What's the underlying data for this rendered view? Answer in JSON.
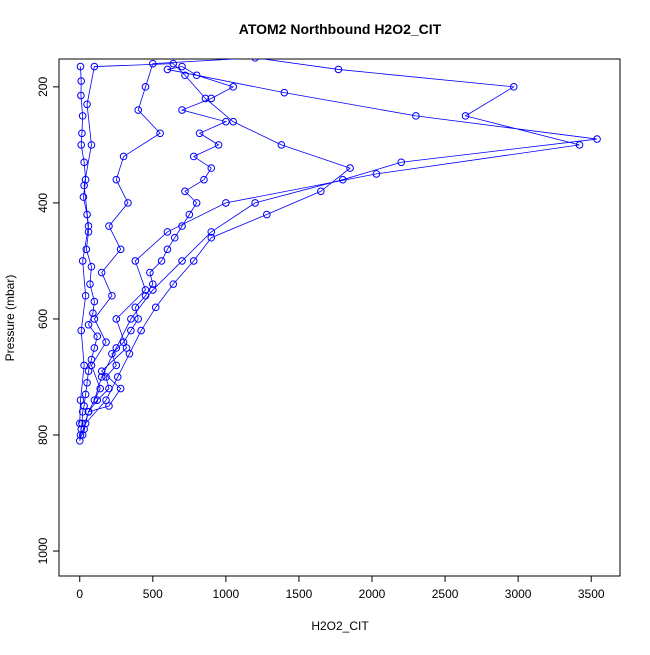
{
  "chart_data": {
    "type": "line",
    "title": "ATOM2 Northbound H2O2_CIT",
    "x_label": "H2O2_CIT",
    "y_label": "Pressure (mbar)",
    "y_reversed": true,
    "markers": "open-circle",
    "xlim": [
      -142,
      3697
    ],
    "ylim": [
      152,
      1043
    ],
    "xticks": [
      0,
      500,
      1000,
      1500,
      2000,
      2500,
      3000,
      3500
    ],
    "yticks": [
      200,
      400,
      600,
      800,
      1000
    ],
    "series": [
      {
        "color": "#0000ff",
        "x": [
          5,
          10,
          8,
          20,
          15,
          10,
          30,
          40,
          25,
          50,
          60,
          45,
          80,
          70,
          100,
          90,
          60,
          120,
          100,
          80,
          60,
          50,
          40,
          30,
          20,
          15,
          10,
          5,
          0,
          60,
          120,
          200,
          180,
          250,
          220,
          300,
          350,
          400,
          380,
          450,
          500,
          480,
          560,
          600,
          650,
          700,
          750,
          800,
          720,
          850,
          900,
          780,
          950,
          820,
          1000,
          700,
          900,
          1050,
          800,
          700,
          600,
          1400,
          2300,
          3540,
          2200,
          1800,
          1200,
          900,
          700,
          500,
          350,
          250,
          150,
          100,
          60,
          200,
          280,
          150,
          320,
          250,
          450,
          380,
          600,
          1000,
          2030,
          3420,
          2640,
          2970,
          1770,
          1200,
          500,
          450,
          400,
          550,
          300,
          250,
          330,
          200,
          280,
          150,
          220,
          100,
          180,
          80,
          140,
          60,
          30,
          20,
          40,
          180,
          260,
          340,
          420,
          520,
          640,
          780,
          900,
          1280,
          1650,
          1850,
          1380,
          1050,
          860,
          720,
          640,
          100,
          50,
          80,
          30,
          60,
          20,
          40,
          10,
          30,
          5,
          0
        ],
        "values": [
          165,
          190,
          215,
          250,
          280,
          300,
          330,
          360,
          390,
          420,
          450,
          480,
          510,
          540,
          570,
          590,
          610,
          630,
          650,
          670,
          690,
          710,
          730,
          750,
          760,
          780,
          790,
          800,
          810,
          760,
          740,
          720,
          700,
          680,
          660,
          640,
          620,
          600,
          580,
          560,
          540,
          520,
          500,
          480,
          460,
          440,
          420,
          400,
          380,
          360,
          340,
          320,
          300,
          280,
          260,
          240,
          220,
          200,
          180,
          165,
          170,
          210,
          250,
          290,
          330,
          360,
          400,
          450,
          500,
          550,
          600,
          650,
          700,
          740,
          760,
          750,
          720,
          690,
          650,
          600,
          550,
          500,
          450,
          400,
          350,
          300,
          250,
          200,
          170,
          150,
          160,
          200,
          240,
          280,
          320,
          360,
          400,
          440,
          480,
          520,
          560,
          600,
          640,
          680,
          720,
          760,
          790,
          800,
          780,
          740,
          700,
          660,
          620,
          580,
          540,
          500,
          460,
          420,
          380,
          340,
          300,
          260,
          220,
          180,
          160,
          165,
          230,
          300,
          370,
          440,
          500,
          560,
          620,
          680,
          740,
          780
        ]
      }
    ]
  }
}
